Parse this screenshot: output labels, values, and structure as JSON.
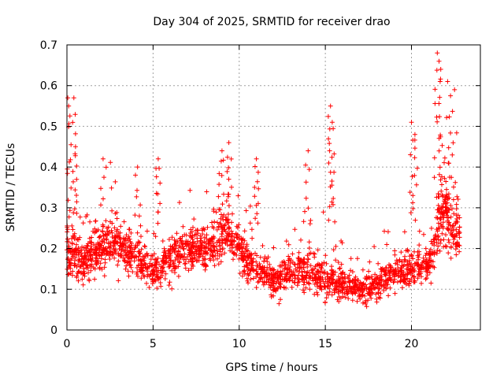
{
  "chart_data": {
    "type": "scatter",
    "title": "Day 304 of 2025, SRMTID for receiver drao",
    "xlabel": "GPS time / hours",
    "ylabel": "SRMTID / TECUs",
    "xlim": [
      0,
      24
    ],
    "ylim": [
      0,
      0.7
    ],
    "xticks": [
      0,
      5,
      10,
      15,
      20
    ],
    "yticks": [
      0,
      0.1,
      0.2,
      0.3,
      0.4,
      0.5,
      0.6,
      0.7
    ],
    "xtick_labels": [
      "0",
      "5",
      "10",
      "15",
      "20"
    ],
    "ytick_labels": [
      "0",
      "0.1",
      "0.2",
      "0.3",
      "0.4",
      "0.5",
      "0.6",
      "0.7"
    ],
    "grid": true,
    "marker": "+",
    "color": "#ff0000",
    "series": [
      {
        "name": "SRMTID",
        "x_range": [
          0.0,
          22.8
        ],
        "baseline_profile": [
          {
            "x": 0.0,
            "median": 0.2,
            "spread": 0.09
          },
          {
            "x": 1.0,
            "median": 0.17,
            "spread": 0.07
          },
          {
            "x": 2.5,
            "median": 0.22,
            "spread": 0.09
          },
          {
            "x": 4.0,
            "median": 0.18,
            "spread": 0.08
          },
          {
            "x": 5.0,
            "median": 0.14,
            "spread": 0.07
          },
          {
            "x": 6.5,
            "median": 0.19,
            "spread": 0.08
          },
          {
            "x": 8.0,
            "median": 0.2,
            "spread": 0.08
          },
          {
            "x": 9.3,
            "median": 0.24,
            "spread": 0.09
          },
          {
            "x": 10.5,
            "median": 0.17,
            "spread": 0.07
          },
          {
            "x": 12.0,
            "median": 0.12,
            "spread": 0.06
          },
          {
            "x": 13.5,
            "median": 0.15,
            "spread": 0.07
          },
          {
            "x": 15.0,
            "median": 0.12,
            "spread": 0.07
          },
          {
            "x": 16.5,
            "median": 0.11,
            "spread": 0.05
          },
          {
            "x": 17.5,
            "median": 0.1,
            "spread": 0.06
          },
          {
            "x": 18.5,
            "median": 0.13,
            "spread": 0.06
          },
          {
            "x": 20.0,
            "median": 0.15,
            "spread": 0.06
          },
          {
            "x": 21.0,
            "median": 0.16,
            "spread": 0.06
          },
          {
            "x": 21.8,
            "median": 0.3,
            "spread": 0.15
          },
          {
            "x": 22.8,
            "median": 0.22,
            "spread": 0.1
          }
        ],
        "peaks": [
          {
            "x": 0.05,
            "y": 0.57
          },
          {
            "x": 0.1,
            "y": 0.55
          },
          {
            "x": 0.4,
            "y": 0.57
          },
          {
            "x": 0.5,
            "y": 0.45
          },
          {
            "x": 2.1,
            "y": 0.42
          },
          {
            "x": 4.1,
            "y": 0.4
          },
          {
            "x": 5.3,
            "y": 0.42
          },
          {
            "x": 9.0,
            "y": 0.44
          },
          {
            "x": 9.4,
            "y": 0.46
          },
          {
            "x": 11.0,
            "y": 0.42
          },
          {
            "x": 14.0,
            "y": 0.44
          },
          {
            "x": 15.3,
            "y": 0.55
          },
          {
            "x": 15.4,
            "y": 0.51
          },
          {
            "x": 20.0,
            "y": 0.51
          },
          {
            "x": 20.2,
            "y": 0.48
          },
          {
            "x": 21.5,
            "y": 0.68
          },
          {
            "x": 21.6,
            "y": 0.66
          },
          {
            "x": 21.7,
            "y": 0.64
          },
          {
            "x": 22.1,
            "y": 0.61
          },
          {
            "x": 22.5,
            "y": 0.59
          }
        ]
      }
    ]
  }
}
